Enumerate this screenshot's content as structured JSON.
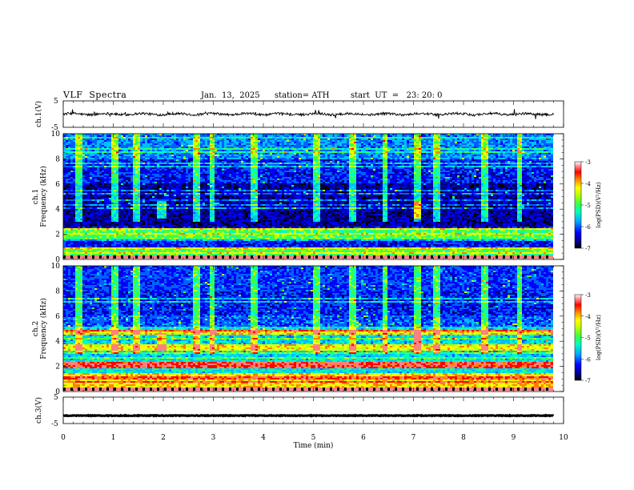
{
  "header": {
    "title": "VLF  Spectra",
    "date": "Jan.  13,  2025",
    "station": "station= ATH",
    "start_ut": "start  UT  =   23: 20: 0"
  },
  "chart_data": [
    {
      "type": "line",
      "name": "ch1-waveform",
      "ylabel": "ch.1(V)",
      "ylim": [
        -5,
        5
      ],
      "yticks": [
        "5",
        "-5"
      ],
      "xlim": [
        0,
        10
      ],
      "trace_range_min": [
        0,
        9.8
      ],
      "trace_level_v": 0.0
    },
    {
      "type": "heatmap",
      "name": "ch1-spectrogram",
      "ylabel": "Frequency  (kHz)",
      "ylabel_prefix": "ch.1",
      "ylim_khz": [
        0,
        10
      ],
      "yticks": [
        "0",
        "2",
        "4",
        "6",
        "8",
        "10"
      ],
      "xlim_min": [
        0,
        10
      ],
      "data_end_min": 9.8,
      "colorbar": {
        "label": "log(PSD)(V²/Hz)",
        "range": [
          -7,
          -3
        ],
        "ticks": [
          "-3",
          "-4",
          "-5",
          "-6",
          "-7"
        ]
      },
      "features": {
        "emission_bands_khz": [
          [
            1.6,
            2.5
          ],
          [
            0.0,
            1.0
          ]
        ],
        "sferic_times_min": [
          0.3,
          1.0,
          1.45,
          2.65,
          2.95,
          3.8,
          5.05,
          5.75,
          6.4,
          7.05,
          7.45,
          8.4,
          9.1
        ],
        "burst_4khz_min": [
          1.95,
          7.05
        ]
      }
    },
    {
      "type": "heatmap",
      "name": "ch2-spectrogram",
      "ylabel": "Frequency  (kHz)",
      "ylabel_prefix": "ch.2",
      "ylim_khz": [
        0,
        10
      ],
      "yticks": [
        "0",
        "2",
        "4",
        "6",
        "8",
        "10"
      ],
      "xlim_min": [
        0,
        10
      ],
      "data_end_min": 9.8,
      "colorbar": {
        "label": "log(PSD)(V²/Hz)",
        "range": [
          -7,
          -3
        ],
        "ticks": [
          "-3",
          "-4",
          "-5",
          "-6",
          "-7"
        ]
      },
      "features": {
        "emission_bands_khz": [
          [
            1.8,
            2.4
          ],
          [
            3.3,
            3.7
          ],
          [
            4.5,
            4.9
          ],
          [
            0.0,
            1.5
          ]
        ],
        "sferic_times_min": [
          0.3,
          1.0,
          1.45,
          2.65,
          2.95,
          3.8,
          5.05,
          5.75,
          6.4,
          7.05,
          7.45,
          8.4,
          9.1
        ],
        "burst_4khz_min": [
          1.95,
          7.05
        ]
      }
    },
    {
      "type": "line",
      "name": "ch3-waveform",
      "ylabel": "ch.3(V)",
      "ylim": [
        -5,
        5
      ],
      "yticks": [
        "5",
        "-5"
      ],
      "xlim": [
        0,
        10
      ],
      "trace_range_min": [
        0,
        9.8
      ],
      "trace_level_v": -2.0
    }
  ],
  "x_axis": {
    "label": "Time  (min)",
    "ticks": [
      "0",
      "1",
      "2",
      "3",
      "4",
      "5",
      "6",
      "7",
      "8",
      "9",
      "10"
    ]
  },
  "colormap": [
    "#000000",
    "#00007f",
    "#0000ff",
    "#0060ff",
    "#00c0ff",
    "#00ffc0",
    "#40ff40",
    "#c0ff00",
    "#ffff00",
    "#ff8000",
    "#ff0000",
    "#ff8080",
    "#ffffff"
  ]
}
